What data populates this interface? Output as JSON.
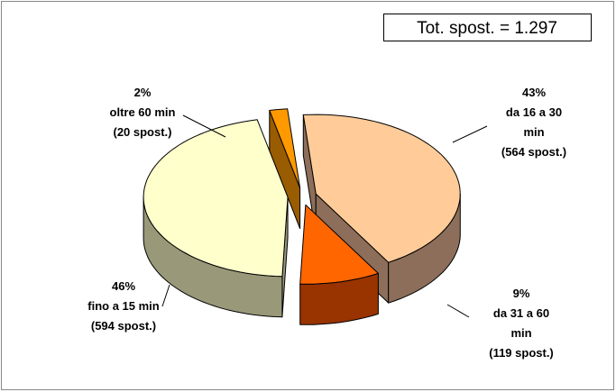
{
  "chart_data": {
    "type": "pie",
    "annotation": "Tot. spost. = 1.297",
    "categories": [
      "da 16 a 30 min",
      "da 31 a 60 min",
      "fino a 15 min",
      "oltre 60 min"
    ],
    "values": [
      43,
      9,
      46,
      2
    ],
    "value_labels": [
      "43%",
      "9%",
      "46%",
      "2%"
    ],
    "count_labels": [
      "(564 spost.)",
      "(119 spost.)",
      "(594 spost.)",
      "(20 spost.)"
    ],
    "colors": [
      "#FFCC99",
      "#FF6600",
      "#FFFFCC",
      "#FF9900"
    ],
    "side_colors": [
      "#8C6E5A",
      "#993300",
      "#99997A",
      "#995C00"
    ]
  }
}
